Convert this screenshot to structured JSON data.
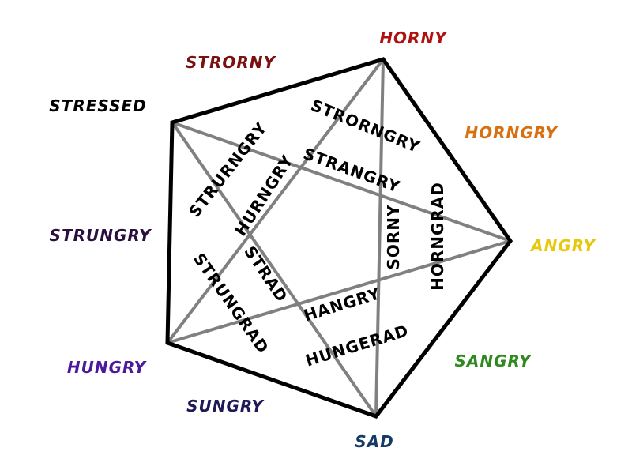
{
  "outer_labels": [
    {
      "text": "HORNY",
      "color": "#b01010"
    },
    {
      "text": "STRORNY",
      "color": "#7a1111"
    },
    {
      "text": "HORNGRY",
      "color": "#d9700f"
    },
    {
      "text": "STRESSED",
      "color": "#000000"
    },
    {
      "text": "ANGRY",
      "color": "#e8c80a"
    },
    {
      "text": "STRUNGRY",
      "color": "#2b0f3d"
    },
    {
      "text": "SANGRY",
      "color": "#2e8a1f"
    },
    {
      "text": "HUNGRY",
      "color": "#4b1a9a"
    },
    {
      "text": "SUNGRY",
      "color": "#1e1a55"
    },
    {
      "text": "SAD",
      "color": "#153a66"
    }
  ],
  "inner_labels": [
    {
      "text": "STRORNGRY"
    },
    {
      "text": "STRURNGRY"
    },
    {
      "text": "HURNGRY"
    },
    {
      "text": "STRANGRY"
    },
    {
      "text": "HORNGRAD"
    },
    {
      "text": "SORNY"
    },
    {
      "text": "STRUNGRAD"
    },
    {
      "text": "STRAD"
    },
    {
      "text": "HANGRY"
    },
    {
      "text": "HUNGERAD"
    }
  ],
  "colors": {
    "pentagon_stroke": "#000000",
    "star_stroke": "#808080"
  }
}
